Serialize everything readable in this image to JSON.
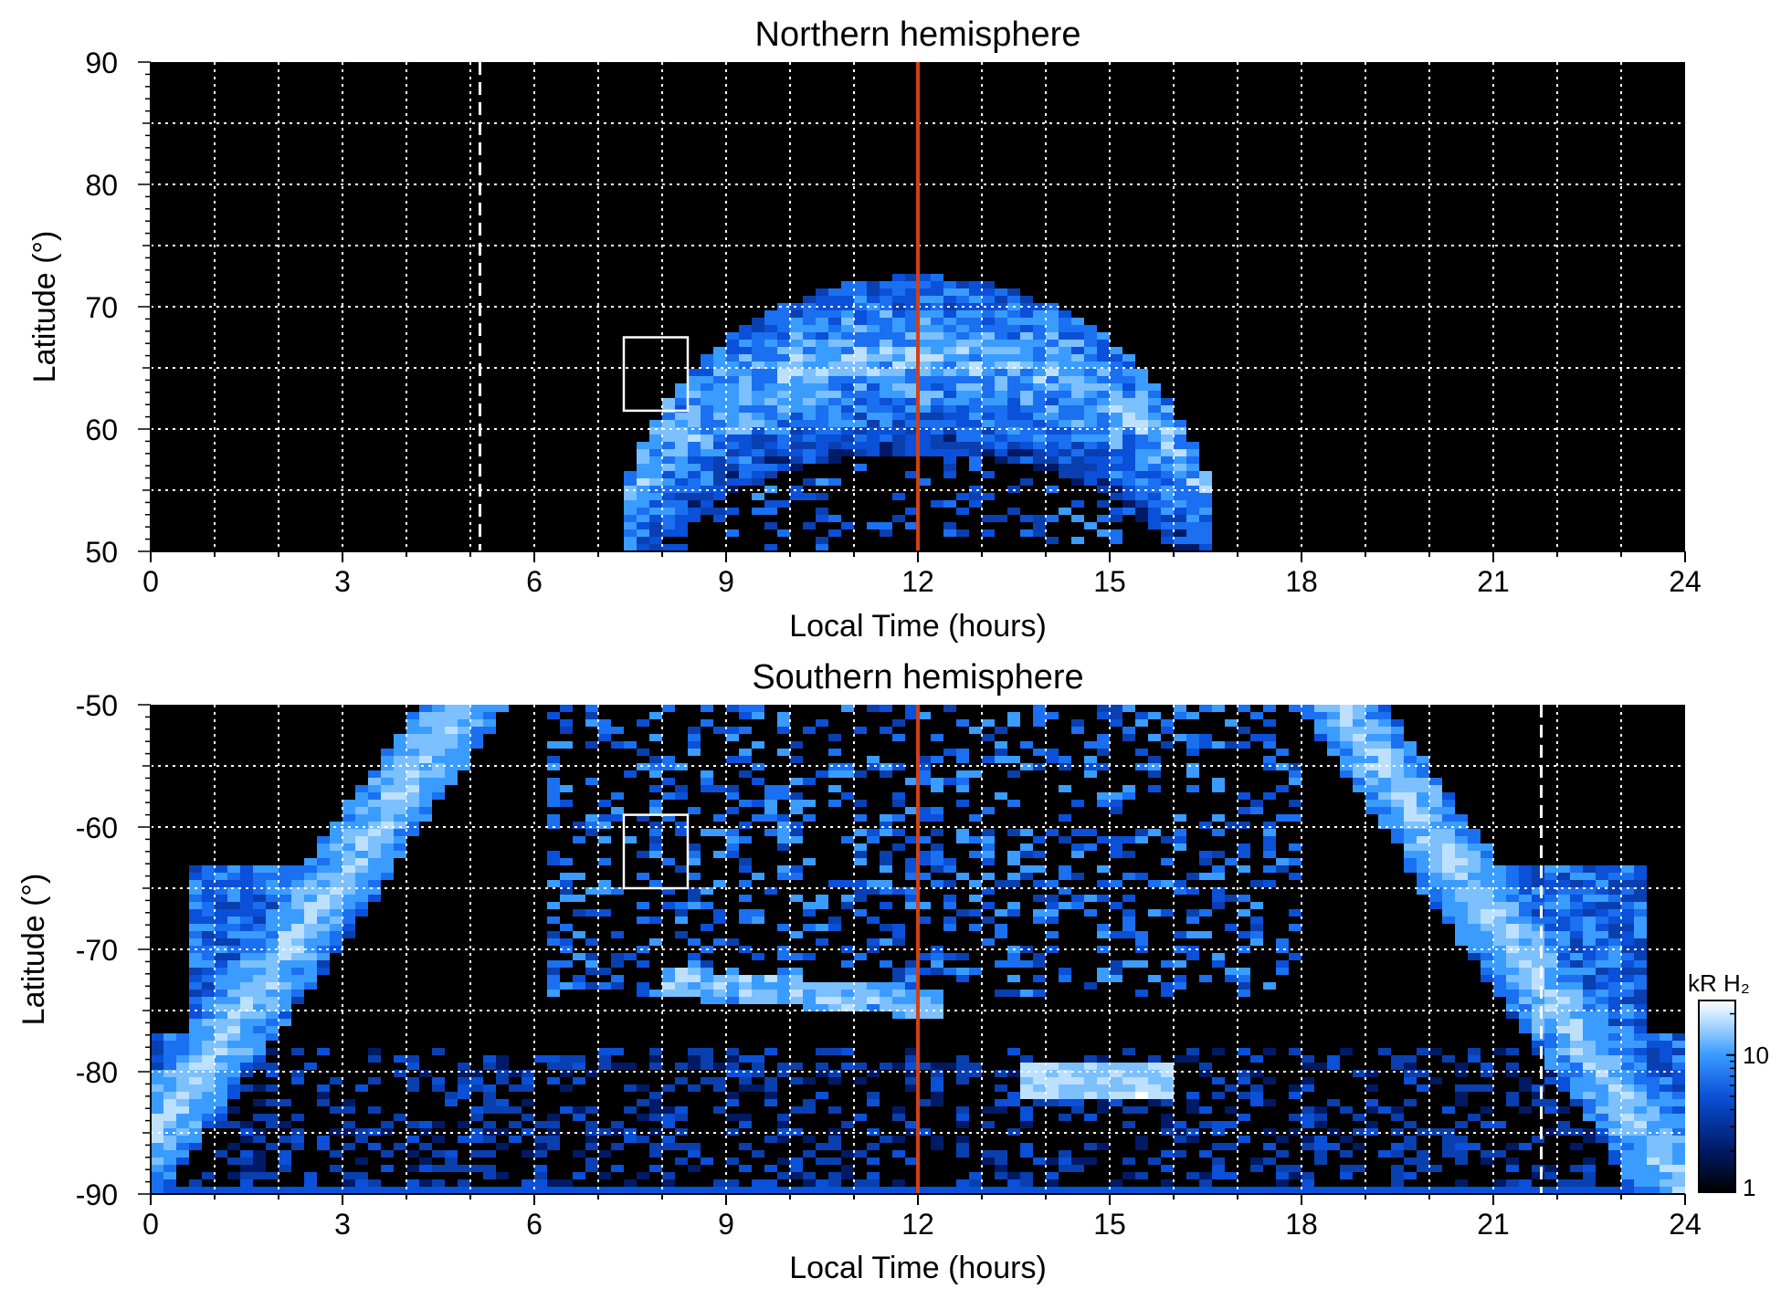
{
  "chart_data": [
    {
      "type": "heatmap",
      "title": "Northern hemisphere",
      "xlabel": "Local Time (hours)",
      "ylabel": "Latitude (°)",
      "xlim": [
        0,
        24
      ],
      "ylim": [
        50,
        90
      ],
      "x_ticks": [
        "0",
        "3",
        "6",
        "9",
        "12",
        "15",
        "18",
        "21",
        "24"
      ],
      "y_ticks": [
        "50",
        "60",
        "70",
        "80",
        "90"
      ],
      "grid": true,
      "background": "#000000",
      "auroral_oval": {
        "center_lt": 12.0,
        "halfwidth_hours": 4.7,
        "peak_lat": 66.0,
        "inner_lat": 62.0,
        "outer_lat": 72.5
      },
      "noon_line_lt": 12.0,
      "noon_line_color": "#d0401a",
      "dashed_line_lt": 5.15,
      "box": {
        "lt": [
          7.4,
          8.4
        ],
        "lat": [
          61.5,
          67.5
        ]
      }
    },
    {
      "type": "heatmap",
      "title": "Southern hemisphere",
      "xlabel": "Local Time (hours)",
      "ylabel": "Latitude (°)",
      "xlim": [
        0,
        24
      ],
      "ylim": [
        -90,
        -50
      ],
      "x_ticks": [
        "0",
        "3",
        "6",
        "9",
        "12",
        "15",
        "18",
        "21",
        "24"
      ],
      "y_ticks": [
        "-50",
        "-60",
        "-70",
        "-80",
        "-90"
      ],
      "grid": true,
      "background": "#000000",
      "noon_line_lt": 12.0,
      "noon_line_color": "#d0401a",
      "dashed_line_lt": 21.75,
      "box": {
        "lt": [
          7.4,
          8.4
        ],
        "lat": [
          -65.0,
          -59.0
        ]
      },
      "colorbar": {
        "label": "kR H₂",
        "ticks": [
          "1",
          "10"
        ],
        "scale": "log",
        "range": [
          1,
          25
        ],
        "colors": [
          "#000000",
          "#001a66",
          "#0a50d8",
          "#3a9cff",
          "#bde0ff",
          "#ffffff"
        ]
      }
    }
  ]
}
